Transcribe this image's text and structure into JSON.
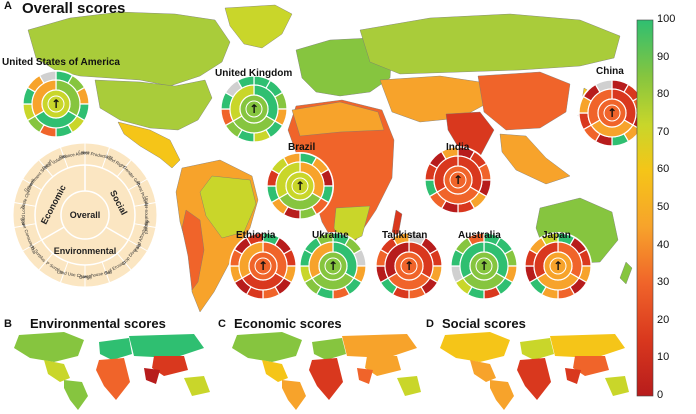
{
  "panels": {
    "a": {
      "letter": "A",
      "title": "Overall scores"
    },
    "b": {
      "letter": "B",
      "title": "Environmental scores"
    },
    "c": {
      "letter": "C",
      "title": "Economic scores"
    },
    "d": {
      "letter": "D",
      "title": "Social scores"
    }
  },
  "colorbar": {
    "ticks": [
      "100",
      "90",
      "80",
      "70",
      "60",
      "50",
      "40",
      "30",
      "20",
      "10",
      "0"
    ],
    "colors": [
      "#b71c1c",
      "#d9381e",
      "#f0642a",
      "#f7a32b",
      "#f5c518",
      "#c9d62a",
      "#86c53f",
      "#2fbf71"
    ]
  },
  "countries": [
    {
      "id": "usa",
      "label": "United States of America",
      "arrow": "↑",
      "outer": [
        "#2fbf71",
        "#86c53f",
        "#f7a32b",
        "#2fbf71",
        "#c9d62a",
        "#2fbf71",
        "#f0642a",
        "#86c53f",
        "#c9d62a",
        "#2fbf71",
        "#f7a32b",
        "#d0d0d0"
      ],
      "inner": [
        "#86c53f",
        "#2fbf71",
        "#f7a32b"
      ],
      "center": "#c9d62a"
    },
    {
      "id": "uk",
      "label": "United Kingdom",
      "arrow": "↑",
      "outer": [
        "#2fbf71",
        "#2fbf71",
        "#86c53f",
        "#f7a32b",
        "#2fbf71",
        "#c9d62a",
        "#2fbf71",
        "#86c53f",
        "#f0642a",
        "#2fbf71",
        "#d0d0d0",
        "#2fbf71"
      ],
      "inner": [
        "#2fbf71",
        "#86c53f",
        "#c9d62a"
      ],
      "center": "#86c53f"
    },
    {
      "id": "china",
      "label": "China",
      "arrow": "↑",
      "outer": [
        "#b71c1c",
        "#d9381e",
        "#f0642a",
        "#b71c1c",
        "#f7a32b",
        "#2fbf71",
        "#b71c1c",
        "#f0642a",
        "#d9381e",
        "#f7a32b",
        "#b71c1c",
        "#d0d0d0"
      ],
      "inner": [
        "#d9381e",
        "#f7a32b",
        "#f0642a"
      ],
      "center": "#f0642a"
    },
    {
      "id": "brazil",
      "label": "Brazil",
      "arrow": "↑",
      "outer": [
        "#2fbf71",
        "#f7a32b",
        "#b71c1c",
        "#2fbf71",
        "#f0642a",
        "#86c53f",
        "#b71c1c",
        "#f7a32b",
        "#2fbf71",
        "#d9381e",
        "#c9d62a",
        "#f7a32b"
      ],
      "inner": [
        "#f7a32b",
        "#86c53f",
        "#c9d62a"
      ],
      "center": "#c9d62a"
    },
    {
      "id": "india",
      "label": "India",
      "arrow": "↑",
      "outer": [
        "#b71c1c",
        "#d9381e",
        "#f0642a",
        "#b71c1c",
        "#f7a32b",
        "#d9381e",
        "#b71c1c",
        "#f0642a",
        "#2fbf71",
        "#d9381e",
        "#b71c1c",
        "#f7a32b"
      ],
      "inner": [
        "#d9381e",
        "#f0642a",
        "#d9381e"
      ],
      "center": "#f0642a"
    },
    {
      "id": "ethiopia",
      "label": "Ethiopia",
      "arrow": "↑",
      "outer": [
        "#2fbf71",
        "#b71c1c",
        "#d9381e",
        "#f7a32b",
        "#b71c1c",
        "#f0642a",
        "#d9381e",
        "#b71c1c",
        "#f7a32b",
        "#f0642a",
        "#b71c1c",
        "#d9381e"
      ],
      "inner": [
        "#f0642a",
        "#d9381e",
        "#f7a32b"
      ],
      "center": "#f0642a"
    },
    {
      "id": "ukraine",
      "label": "Ukraine",
      "arrow": "↑",
      "outer": [
        "#2fbf71",
        "#86c53f",
        "#d0d0d0",
        "#f7a32b",
        "#2fbf71",
        "#f0642a",
        "#2fbf71",
        "#86c53f",
        "#c9d62a",
        "#2fbf71",
        "#2fbf71",
        "#86c53f"
      ],
      "inner": [
        "#2fbf71",
        "#86c53f",
        "#f7a32b"
      ],
      "center": "#86c53f"
    },
    {
      "id": "tajikistan",
      "label": "Tajikistan",
      "arrow": "↑",
      "outer": [
        "#d0d0d0",
        "#b71c1c",
        "#d9381e",
        "#f7a32b",
        "#b71c1c",
        "#f0642a",
        "#d9381e",
        "#2fbf71",
        "#b71c1c",
        "#f0642a",
        "#d9381e",
        "#f7a32b"
      ],
      "inner": [
        "#d9381e",
        "#f0642a",
        "#b71c1c"
      ],
      "center": "#f0642a"
    },
    {
      "id": "australia",
      "label": "Australia",
      "arrow": "↑",
      "outer": [
        "#2fbf71",
        "#2fbf71",
        "#86c53f",
        "#f7a32b",
        "#2fbf71",
        "#d9381e",
        "#2fbf71",
        "#c9d62a",
        "#d0d0d0",
        "#2fbf71",
        "#86c53f",
        "#f0642a"
      ],
      "inner": [
        "#2fbf71",
        "#86c53f",
        "#2fbf71"
      ],
      "center": "#86c53f"
    },
    {
      "id": "japan",
      "label": "Japan",
      "arrow": "↑",
      "outer": [
        "#2fbf71",
        "#b71c1c",
        "#d9381e",
        "#f7a32b",
        "#b71c1c",
        "#f0642a",
        "#f7a32b",
        "#2fbf71",
        "#b71c1c",
        "#d9381e",
        "#f7a32b",
        "#c9d62a"
      ],
      "inner": [
        "#f0642a",
        "#f7a32b",
        "#d9381e"
      ],
      "center": "#f7a32b"
    }
  ],
  "legend": {
    "center": "Overall",
    "groups": [
      "Economic",
      "Social",
      "Environmental"
    ],
    "indicators": [
      "Labor Productivity",
      "Land Right",
      "Gender Gap",
      "Rural Poverty",
      "Under-nourishment",
      "Food Affordability",
      "Crop Diversity",
      "Soil Erosion",
      "Greenhouse Gas",
      "Land Use Change",
      "P Surplus",
      "N Surplus",
      "Water Consumption",
      "Food Loss",
      "Trade Openness",
      "Government Support",
      "Price Volatility",
      "Finance Access"
    ]
  }
}
